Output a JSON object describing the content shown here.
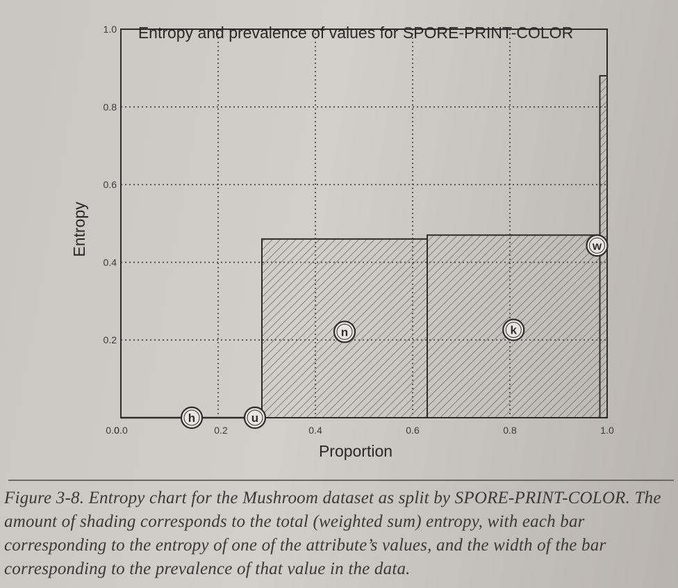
{
  "chart_data": {
    "type": "bar",
    "title": "Entropy and prevalence of values for SPORE-PRINT-COLOR",
    "xlabel": "Proportion",
    "ylabel": "Entropy",
    "xlim": [
      0,
      1
    ],
    "ylim": [
      0,
      1
    ],
    "x_ticks": [
      "0.0",
      "0.2",
      "0.4",
      "0.6",
      "0.8",
      "1.0"
    ],
    "y_ticks": [
      "0.2",
      "0.4",
      "0.6",
      "0.8",
      "1.0"
    ],
    "grid": true,
    "bars": [
      {
        "label": "h",
        "x_start": 0.0,
        "x_end": 0.2,
        "entropy": 0.0
      },
      {
        "label": "u",
        "x_start": 0.2,
        "x_end": 0.29,
        "entropy": 0.0
      },
      {
        "label": "n",
        "x_start": 0.29,
        "x_end": 0.63,
        "entropy": 0.46
      },
      {
        "label": "k",
        "x_start": 0.63,
        "x_end": 0.985,
        "entropy": 0.47
      },
      {
        "label": "w",
        "x_start": 0.985,
        "x_end": 1.0,
        "entropy": 0.88
      }
    ]
  },
  "caption": "Figure 3-8. Entropy chart for the Mushroom dataset as split by SPORE-PRINT-COLOR. The amount of shading corresponds to the total (weighted sum) entropy, with each bar corresponding to the entropy of one of the attribute’s values, and the width of the bar corresponding to the prevalence of that value in the data.",
  "colors": {
    "ink": "#2e2c2b",
    "hatch": "#6f6a66",
    "grid": "#3c3a39"
  }
}
